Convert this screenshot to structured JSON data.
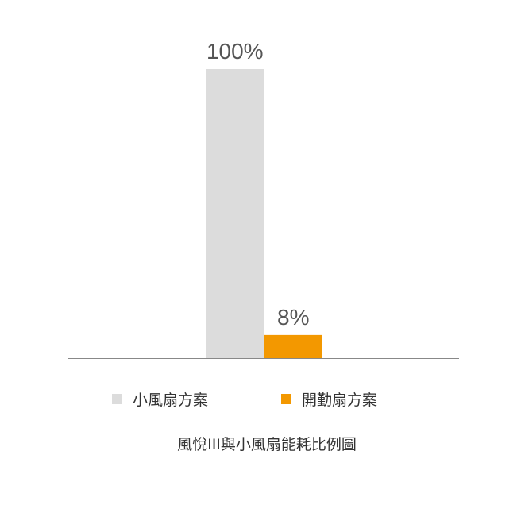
{
  "chart_data": {
    "type": "bar",
    "title": "風悅III與小風扇能耗比例圖",
    "categories": [
      ""
    ],
    "series": [
      {
        "name": "小風扇方案",
        "values": [
          100
        ],
        "label": "100%",
        "color": "#dcdcdc"
      },
      {
        "name": "開勤扇方案",
        "values": [
          8
        ],
        "label": "8%",
        "color": "#f39800"
      }
    ],
    "ylim": [
      0,
      100
    ],
    "unit": "%",
    "grid": false,
    "legend": "bottom"
  }
}
